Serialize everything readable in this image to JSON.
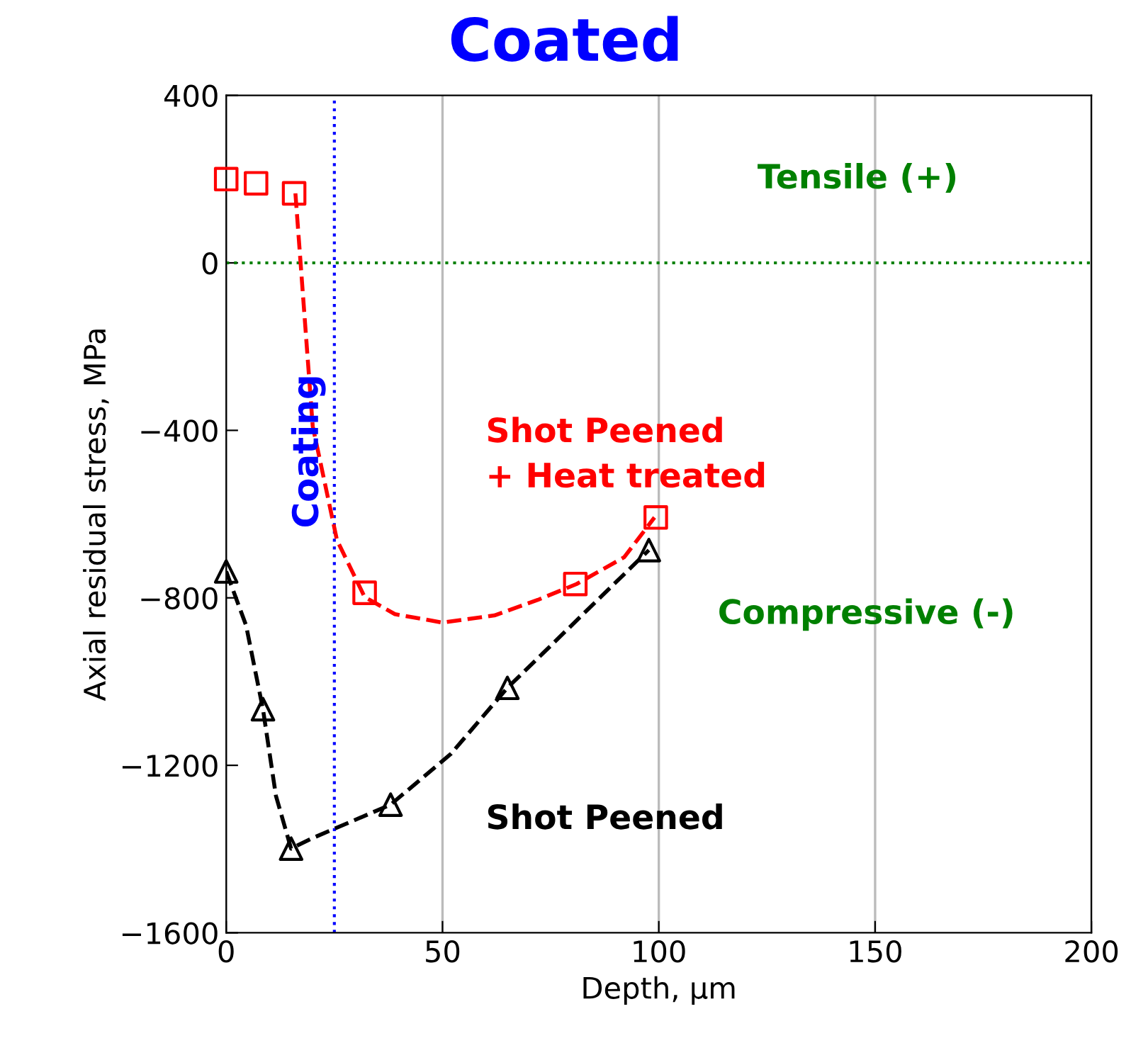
{
  "chart_data": {
    "type": "scatter",
    "title": "Coated",
    "xlabel": "Depth, µm",
    "ylabel": "Axial residual stress, MPa",
    "xlim": [
      0,
      200
    ],
    "xticks": [
      0,
      50,
      100,
      150,
      200
    ],
    "ylim": [
      -1600,
      400
    ],
    "yticks": [
      400,
      0,
      -400,
      -800,
      -1200,
      -1600
    ],
    "grid": "x",
    "series": [
      {
        "name": "Shot Peened\n+ Heat treated",
        "marker": "square",
        "color": "#ff0000",
        "x": [
          0,
          6.9,
          15.7,
          32,
          80.7,
          99.3
        ],
        "values": [
          200,
          190,
          166,
          -788,
          -767,
          -608
        ]
      },
      {
        "type": "line",
        "line_style": "dashed",
        "marker": "none",
        "color": "#ff0000",
        "x": [
          16,
          20,
          25.6,
          32,
          39,
          50,
          62,
          72,
          81,
          92,
          99
        ],
        "values": [
          166,
          -390,
          -662,
          -798,
          -839,
          -859,
          -842,
          -805,
          -767,
          -703,
          -608
        ]
      },
      {
        "name": "Shot Peened",
        "marker": "triangle",
        "color": "#000000",
        "x": [
          0,
          8.5,
          15,
          38,
          65,
          97.7
        ],
        "values": [
          -737,
          -1066,
          -1399,
          -1294,
          -1015,
          -686
        ]
      },
      {
        "type": "line",
        "line_style": "dashed",
        "marker": "none",
        "color": "#000000",
        "x": [
          0,
          4.6,
          8.5,
          11.5,
          15,
          19.7,
          38,
          52,
          65,
          97.7
        ],
        "values": [
          -737,
          -866,
          -1066,
          -1273,
          -1399,
          -1375,
          -1294,
          -1172,
          -1015,
          -686
        ]
      }
    ],
    "ref_lines": [
      {
        "axis": "y",
        "value": 0,
        "color": "#008000",
        "line_style": "dotted"
      },
      {
        "axis": "x",
        "value": 25,
        "label": "Coating",
        "color": "#0000ff",
        "line_style": "dotted"
      }
    ],
    "annotations": [
      "Tensile (+)",
      "Compressive (-)"
    ]
  }
}
